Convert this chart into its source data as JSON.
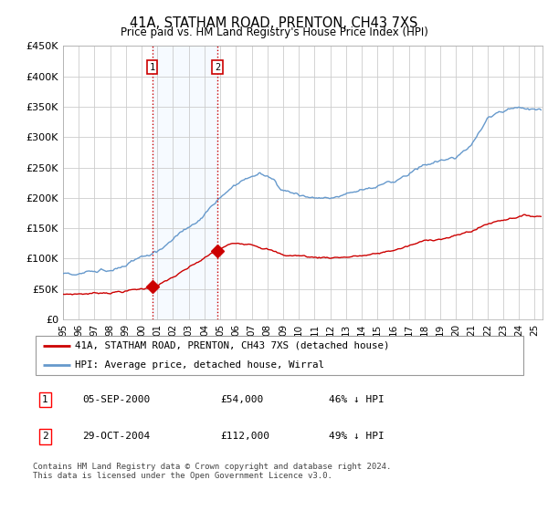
{
  "title": "41A, STATHAM ROAD, PRENTON, CH43 7XS",
  "subtitle": "Price paid vs. HM Land Registry's House Price Index (HPI)",
  "ylabel_ticks": [
    "£0",
    "£50K",
    "£100K",
    "£150K",
    "£200K",
    "£250K",
    "£300K",
    "£350K",
    "£400K",
    "£450K"
  ],
  "ylim": [
    0,
    450000
  ],
  "xlim_start": 1995.0,
  "xlim_end": 2025.5,
  "sale1_price": 54000,
  "sale1_x": 2000.67,
  "sale2_price": 112000,
  "sale2_x": 2004.83,
  "red_line_color": "#cc0000",
  "blue_line_color": "#6699cc",
  "shade_color": "#ddeeff",
  "vline_color": "#cc0000",
  "legend_label_red": "41A, STATHAM ROAD, PRENTON, CH43 7XS (detached house)",
  "legend_label_blue": "HPI: Average price, detached house, Wirral",
  "footer": "Contains HM Land Registry data © Crown copyright and database right 2024.\nThis data is licensed under the Open Government Licence v3.0.",
  "table_row1_num": "1",
  "table_row1_date": "05-SEP-2000",
  "table_row1_price": "£54,000",
  "table_row1_hpi": "46% ↓ HPI",
  "table_row2_num": "2",
  "table_row2_date": "29-OCT-2004",
  "table_row2_price": "£112,000",
  "table_row2_hpi": "49% ↓ HPI"
}
